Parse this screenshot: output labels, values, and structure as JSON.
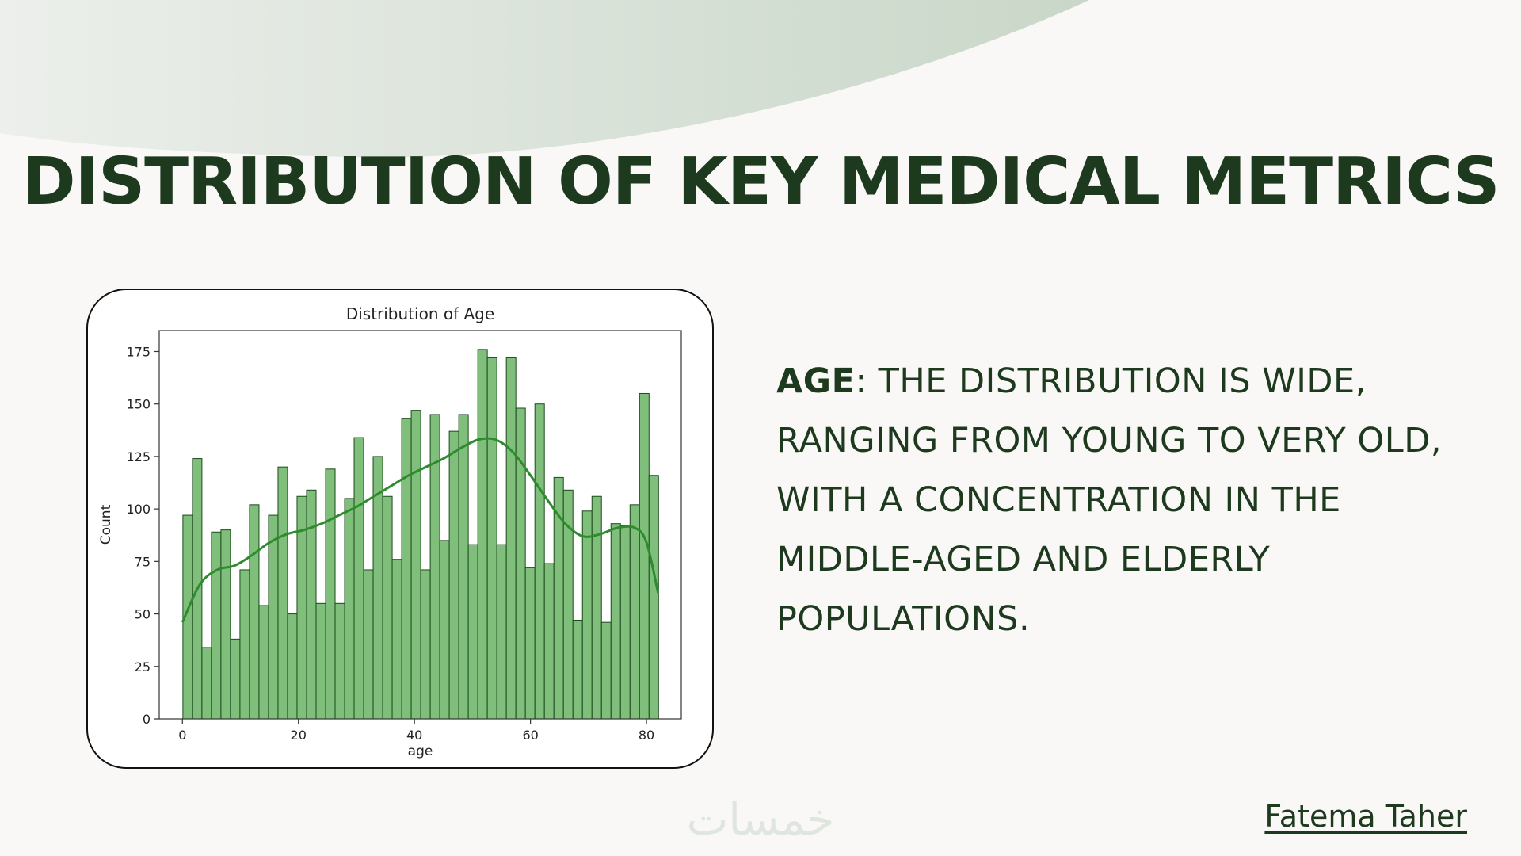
{
  "slide": {
    "title": "DISTRIBUTION OF KEY MEDICAL METRICS",
    "description_keyword": "AGE",
    "description_text": ": THE DISTRIBUTION IS WIDE, RANGING FROM YOUNG TO VERY OLD, WITH A CONCENTRATION IN THE MIDDLE-AGED AND ELDERLY POPULATIONS.",
    "author": "Fatema Taher",
    "logo_text": "خمسات"
  },
  "colors": {
    "background": "#f9f8f6",
    "wave": "#d5dfd4",
    "title": "#1e3a1e",
    "bar_fill": "#7fbf7b",
    "bar_edge": "#1c4a1c",
    "kde_line": "#2e8b2e"
  },
  "chart_data": {
    "type": "bar",
    "title": "Distribution of Age",
    "xlabel": "age",
    "ylabel": "Count",
    "xlim": [
      -4,
      86
    ],
    "ylim": [
      0,
      185
    ],
    "xticks": [
      0,
      20,
      40,
      60,
      80
    ],
    "yticks": [
      0,
      25,
      50,
      75,
      100,
      125,
      150,
      175
    ],
    "bin_start": 0.08,
    "bin_width": 1.64,
    "values": [
      97,
      124,
      34,
      89,
      90,
      38,
      71,
      102,
      54,
      97,
      120,
      50,
      106,
      109,
      55,
      119,
      55,
      105,
      134,
      71,
      125,
      106,
      76,
      143,
      147,
      71,
      145,
      85,
      137,
      145,
      83,
      176,
      172,
      83,
      172,
      148,
      72,
      150,
      74,
      115,
      109,
      47,
      99,
      106,
      46,
      93,
      92,
      102,
      155,
      116
    ],
    "kde": {
      "x": [
        0,
        3,
        6,
        9,
        12,
        15,
        18,
        21,
        24,
        27,
        30,
        33,
        36,
        39,
        42,
        45,
        48,
        51,
        54,
        57,
        60,
        63,
        66,
        69,
        72,
        75,
        78,
        80,
        82
      ],
      "y": [
        46,
        64,
        71,
        73,
        78,
        84,
        88,
        90,
        93,
        97,
        101,
        106,
        111,
        116,
        120,
        124,
        129,
        133,
        133,
        127,
        116,
        104,
        93,
        87,
        88,
        91,
        91,
        84,
        60
      ]
    },
    "grid": false
  }
}
